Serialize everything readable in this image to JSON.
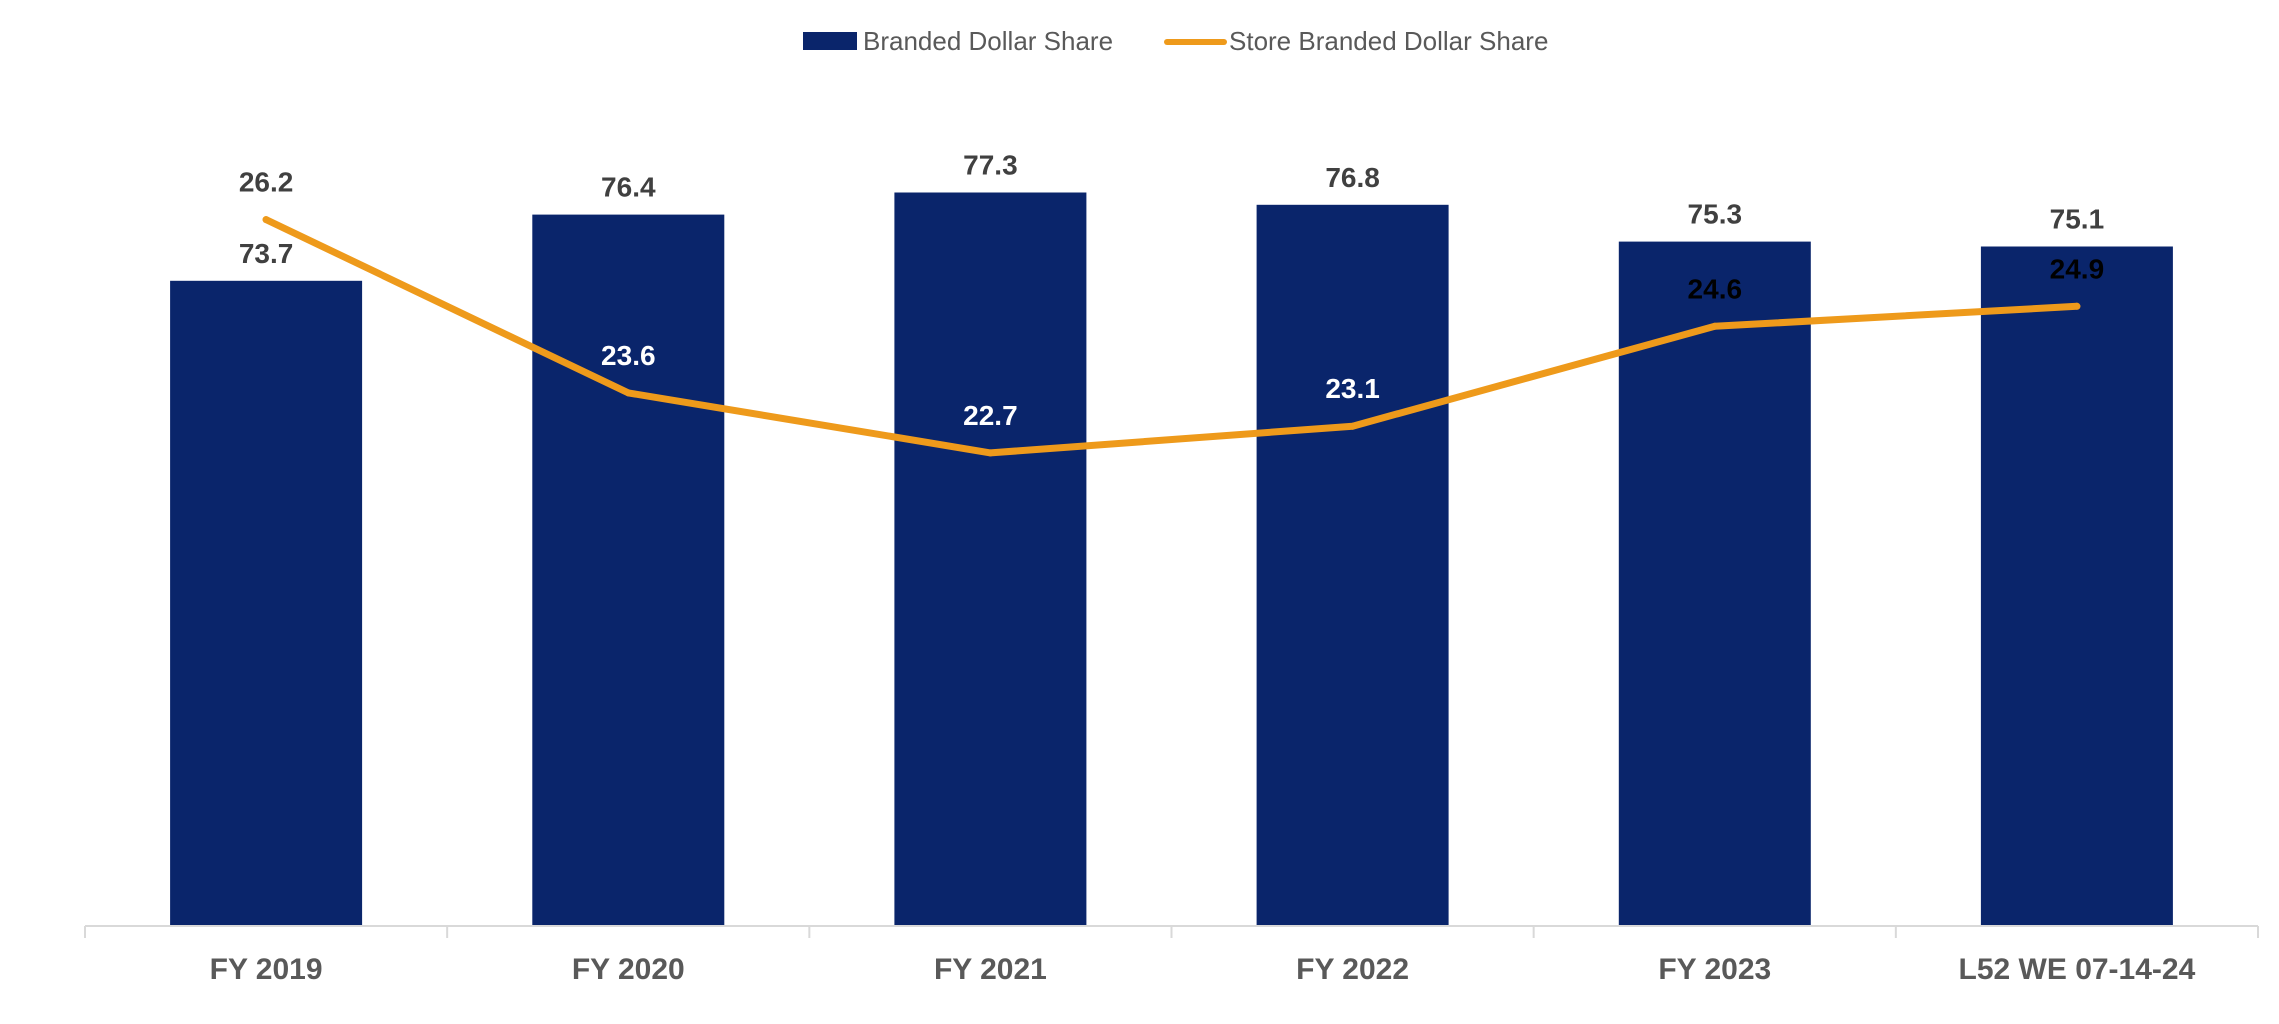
{
  "chart_data": {
    "type": "bar",
    "title": "",
    "xlabel": "",
    "ylabel": "",
    "categories": [
      "FY 2019",
      "FY 2020",
      "FY 2021",
      "FY 2022",
      "FY 2023",
      "L52 WE 07-14-24"
    ],
    "series": [
      {
        "name": "Branded Dollar Share",
        "type": "bar",
        "color": "#0A256B",
        "values": [
          73.7,
          76.4,
          77.3,
          76.8,
          75.3,
          75.1
        ],
        "label_color": "#404040"
      },
      {
        "name": "Store Branded Dollar Share",
        "type": "line",
        "color": "#EE9A1B",
        "values": [
          26.2,
          23.6,
          22.7,
          23.1,
          24.6,
          24.9
        ],
        "label_colors": [
          "#404040",
          "#FFFFFF",
          "#FFFFFF",
          "#FFFFFF",
          "#000000",
          "#000000"
        ]
      }
    ],
    "bar_axis_range": [
      47.4,
      78.3
    ],
    "line_axis_range": [
      15.6,
      27.2
    ],
    "legend_position": "top-center",
    "grid": false,
    "axis_color": "#D9D9D9"
  }
}
